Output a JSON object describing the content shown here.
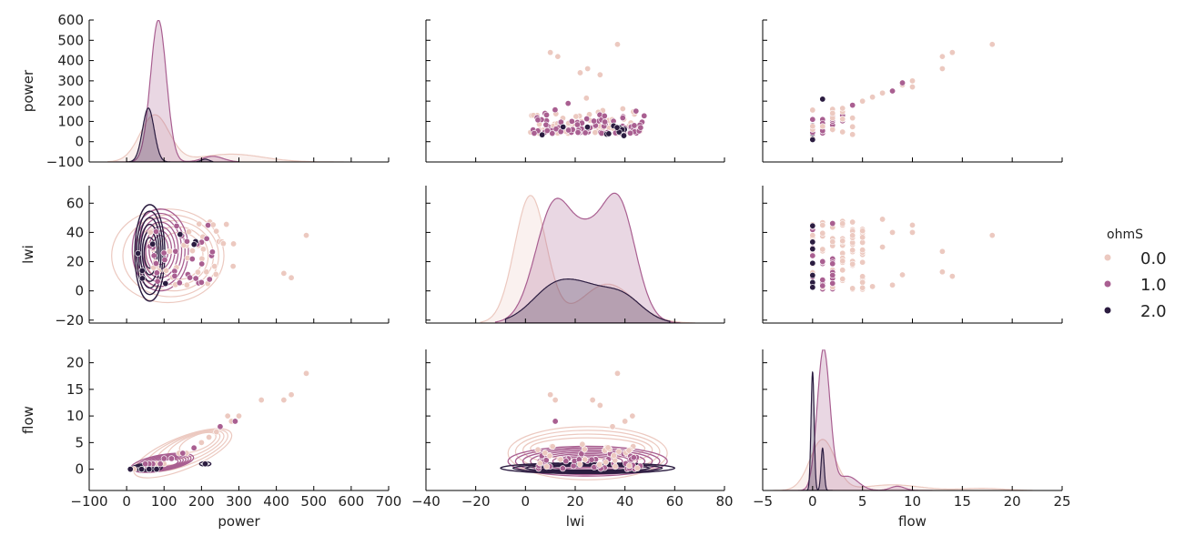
{
  "chart_data": {
    "type": "pairplot",
    "variables": [
      "power",
      "lwi",
      "flow"
    ],
    "hue": "ohmS",
    "hue_levels": [
      "0.0",
      "1.0",
      "2.0"
    ],
    "colors": {
      "0.0": "#ecc9c0",
      "1.0": "#a95f91",
      "2.0": "#2b1c40"
    },
    "axis_ranges": {
      "power": {
        "lim": [
          -100,
          700
        ],
        "ticks": [
          "−100",
          "0",
          "100",
          "200",
          "300",
          "400",
          "500",
          "600",
          "700"
        ]
      },
      "power_y": {
        "lim": [
          -100,
          600
        ],
        "ticks": [
          "−100",
          "0",
          "100",
          "200",
          "300",
          "400",
          "500",
          "600"
        ]
      },
      "lwi": {
        "lim": [
          -40,
          80
        ],
        "ticks": [
          "−40",
          "−20",
          "0",
          "20",
          "40",
          "60",
          "80"
        ]
      },
      "lwi_y": {
        "lim": [
          -22,
          72
        ],
        "ticks": [
          "−20",
          "0",
          "20",
          "40",
          "60"
        ]
      },
      "flow": {
        "lim": [
          -5,
          25
        ],
        "ticks": [
          "−5",
          "0",
          "5",
          "10",
          "15",
          "20",
          "25"
        ]
      },
      "flow_y": {
        "lim": [
          -4,
          22.5
        ],
        "ticks": [
          "0",
          "5",
          "10",
          "15",
          "20"
        ]
      }
    },
    "axis_labels": {
      "power": "power",
      "lwi": "lwi",
      "flow": "flow"
    },
    "diagonal_kde": {
      "power": [
        {
          "level": "0.0",
          "mode": 80,
          "peak": 190,
          "extent": [
            -50,
            580
          ]
        },
        {
          "level": "1.0",
          "mode": 85,
          "peak": 580,
          "extent": [
            -30,
            300
          ]
        },
        {
          "level": "2.0",
          "mode": 60,
          "peak": 165,
          "extent": [
            0,
            220
          ]
        }
      ],
      "lwi": [
        {
          "level": "0.0",
          "modes": [
            2,
            35
          ],
          "peak": 65,
          "extent": [
            -18,
            68
          ]
        },
        {
          "level": "1.0",
          "modes": [
            12,
            37
          ],
          "peak": 65,
          "extent": [
            -12,
            62
          ]
        },
        {
          "level": "2.0",
          "modes": [
            12,
            37
          ],
          "peak": 3,
          "extent": [
            -8,
            58
          ]
        }
      ],
      "flow": [
        {
          "level": "0.0",
          "mode": 1,
          "peak": 0.35,
          "extent": [
            -4,
            22
          ]
        },
        {
          "level": "1.0",
          "mode": 1,
          "peak": 0.95,
          "extent": [
            -3,
            12
          ]
        },
        {
          "level": "2.0",
          "modes": [
            0,
            1
          ],
          "peak": 0.8,
          "extent": [
            -1,
            2
          ]
        }
      ]
    },
    "scatter_points": {
      "power_flow": [
        {
          "level": "0.0",
          "power": 480,
          "flow": 18
        },
        {
          "level": "0.0",
          "power": 440,
          "flow": 14
        },
        {
          "level": "0.0",
          "power": 420,
          "flow": 13
        },
        {
          "level": "0.0",
          "power": 360,
          "flow": 13
        },
        {
          "level": "0.0",
          "power": 300,
          "flow": 10
        },
        {
          "level": "0.0",
          "power": 280,
          "flow": 9
        },
        {
          "level": "0.0",
          "power": 270,
          "flow": 10
        },
        {
          "level": "0.0",
          "power": 250,
          "flow": 8
        },
        {
          "level": "0.0",
          "power": 240,
          "flow": 7
        },
        {
          "level": "0.0",
          "power": 220,
          "flow": 6
        },
        {
          "level": "0.0",
          "power": 200,
          "flow": 5
        },
        {
          "level": "0.0",
          "power": 180,
          "flow": 4
        },
        {
          "level": "0.0",
          "power": 160,
          "flow": 3
        },
        {
          "level": "0.0",
          "power": 140,
          "flow": 3
        },
        {
          "level": "0.0",
          "power": 120,
          "flow": 2
        },
        {
          "level": "0.0",
          "power": 100,
          "flow": 1
        },
        {
          "level": "0.0",
          "power": 80,
          "flow": 1
        },
        {
          "level": "0.0",
          "power": 60,
          "flow": 0
        },
        {
          "level": "0.0",
          "power": 40,
          "flow": 0
        },
        {
          "level": "0.0",
          "power": 20,
          "flow": 0
        },
        {
          "level": "1.0",
          "power": 290,
          "flow": 9
        },
        {
          "level": "1.0",
          "power": 250,
          "flow": 8
        },
        {
          "level": "1.0",
          "power": 180,
          "flow": 4
        },
        {
          "level": "1.0",
          "power": 150,
          "flow": 3
        },
        {
          "level": "1.0",
          "power": 120,
          "flow": 2
        },
        {
          "level": "1.0",
          "power": 100,
          "flow": 2
        },
        {
          "level": "1.0",
          "power": 90,
          "flow": 1
        },
        {
          "level": "1.0",
          "power": 70,
          "flow": 1
        },
        {
          "level": "1.0",
          "power": 60,
          "flow": 1
        },
        {
          "level": "1.0",
          "power": 50,
          "flow": 1
        },
        {
          "level": "2.0",
          "power": 210,
          "flow": 1
        },
        {
          "level": "2.0",
          "power": 80,
          "flow": 0
        },
        {
          "level": "2.0",
          "power": 60,
          "flow": 0
        },
        {
          "level": "2.0",
          "power": 40,
          "flow": 0
        },
        {
          "level": "2.0",
          "power": 10,
          "flow": 0
        }
      ]
    },
    "legend": {
      "title": "ohmS",
      "placement": "right",
      "entries": [
        "0.0",
        "1.0",
        "2.0"
      ]
    }
  }
}
